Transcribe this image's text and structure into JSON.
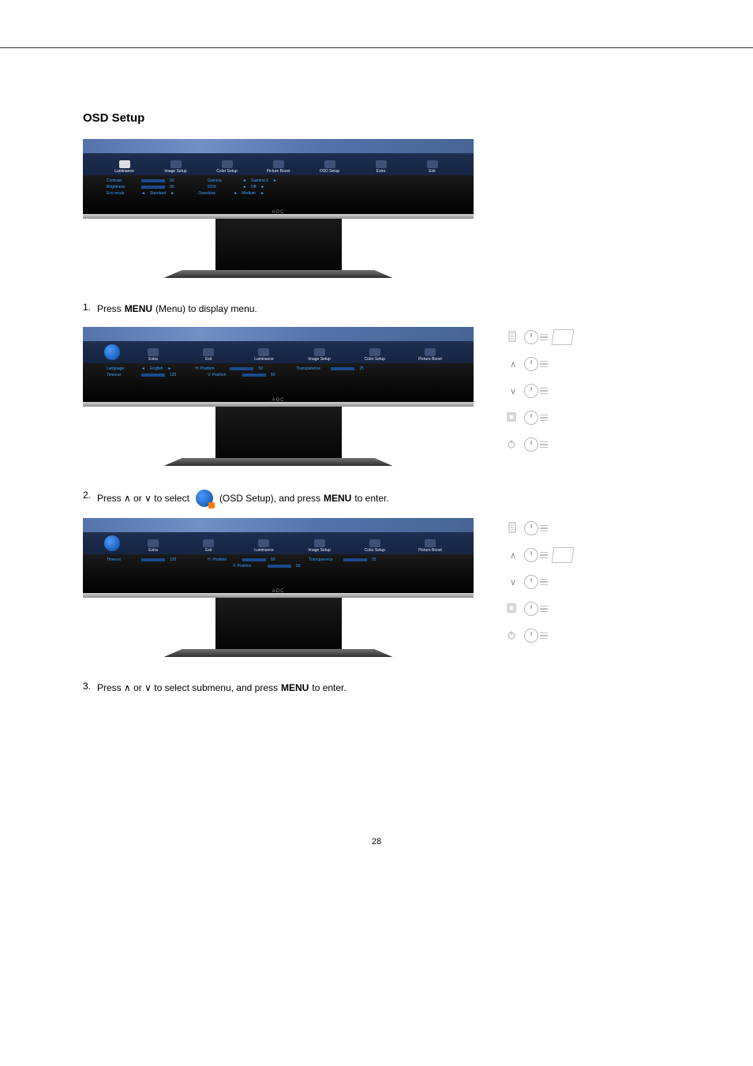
{
  "page_number": "28",
  "section_title": "OSD Setup",
  "monitor_brand": "AOC",
  "osd1": {
    "tabs": [
      "Luminance",
      "Image Setup",
      "Color Setup",
      "Picture Boost",
      "OSD Setup",
      "Extra",
      "Exit"
    ],
    "active_tab_index": 0,
    "rows_left": [
      {
        "label": "Contrast",
        "value": "50",
        "fill": 50
      },
      {
        "label": "Brightness",
        "value": "90",
        "fill": 90
      },
      {
        "label": "Eco mode",
        "arrow_l": "◄",
        "opt": "Standard",
        "arrow_r": "►"
      }
    ],
    "rows_right": [
      {
        "label": "Gamma",
        "arrow_l": "◄",
        "opt": "Gamma 1",
        "arrow_r": "►"
      },
      {
        "label": "DCR",
        "arrow_l": "◄",
        "opt": "Off",
        "arrow_r": "►"
      },
      {
        "label": "Overdrive",
        "arrow_l": "◄",
        "opt": "Medium",
        "arrow_r": "►"
      }
    ]
  },
  "osd2": {
    "tabs": [
      "Extra",
      "Exit",
      "Luminance",
      "Image Setup",
      "Color Setup",
      "Picture Boost"
    ],
    "globe_first": true,
    "rows_left": [
      {
        "label": "Language",
        "arrow_l": "◄",
        "opt": "English",
        "arrow_r": "►"
      },
      {
        "label": "Timeout",
        "value": "120",
        "fill": 85
      }
    ],
    "rows_right": [
      {
        "label": "H. Position",
        "value": "50",
        "fill": 50
      },
      {
        "label": "V. Position",
        "value": "50",
        "fill": 50
      }
    ],
    "rows_far": [
      {
        "label": "Transparence",
        "value": "25",
        "fill": 25
      }
    ]
  },
  "osd3": {
    "tabs": [
      "Extra",
      "Exit",
      "Luminance",
      "Image Setup",
      "Color Setup",
      "Picture Boost"
    ],
    "globe_first": true,
    "active_label": "Language",
    "rows_left": [
      {
        "label": "Timeout",
        "value": "120",
        "fill": 85
      }
    ],
    "rows_right": [
      {
        "label": "H. Position",
        "value": "50",
        "fill": 50
      },
      {
        "label": "V. Position",
        "value": "50",
        "fill": 50
      }
    ],
    "rows_far": [
      {
        "label": "Transparence",
        "value": "25",
        "fill": 25
      }
    ]
  },
  "steps": {
    "s1_num": "1.",
    "s1_a": "Press ",
    "s1_b": "MENU",
    "s1_c": " (Menu) to display menu.",
    "s2_num": "2.",
    "s2_a": "Press ∧ or ∨   to select ",
    "s2_b": " (OSD Setup), and press ",
    "s2_c": "MENU",
    "s2_d": " to enter.",
    "s3_num": "3.",
    "s3_a": "Press ∧ or ∨   to select submenu, and press ",
    "s3_b": "MENU",
    "s3_c": " to enter."
  },
  "thumb_keys": [
    "▯",
    "∧",
    "∨",
    "▢",
    "⏻"
  ],
  "colors": {
    "osd_text": "#3aa0ff",
    "bezel": "#909090"
  }
}
